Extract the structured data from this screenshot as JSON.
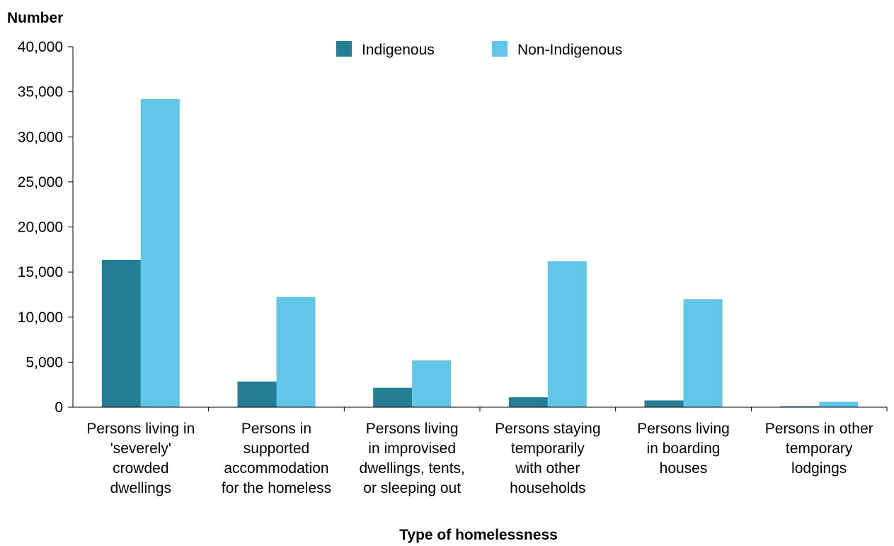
{
  "chart_data": {
    "type": "bar",
    "ylabel": "Number",
    "xlabel": "Type of homelessness",
    "ylim": [
      0,
      40000
    ],
    "yticks": [
      0,
      5000,
      10000,
      15000,
      20000,
      25000,
      30000,
      35000,
      40000
    ],
    "ytick_labels": [
      "0",
      "5,000",
      "10,000",
      "15,000",
      "20,000",
      "25,000",
      "30,000",
      "35,000",
      "40,000"
    ],
    "legend_position": "top-center",
    "grid": false,
    "categories": [
      [
        "Persons living in",
        "'severely'",
        "crowded",
        "dwellings"
      ],
      [
        "Persons in",
        "supported",
        "accommodation",
        "for the homeless"
      ],
      [
        "Persons living",
        "in improvised",
        "dwellings, tents,",
        "or sleeping out"
      ],
      [
        "Persons staying",
        "temporarily",
        "with other",
        "households"
      ],
      [
        "Persons living",
        "in boarding",
        "houses"
      ],
      [
        "Persons in other",
        "temporary",
        "lodgings"
      ]
    ],
    "series": [
      {
        "name": "Indigenous",
        "color": "#237f96",
        "values": [
          16350,
          2850,
          2150,
          1100,
          750,
          100
        ]
      },
      {
        "name": "Non-Indigenous",
        "color": "#61c6e7",
        "values": [
          34200,
          12250,
          5200,
          16200,
          12000,
          600
        ]
      }
    ]
  }
}
